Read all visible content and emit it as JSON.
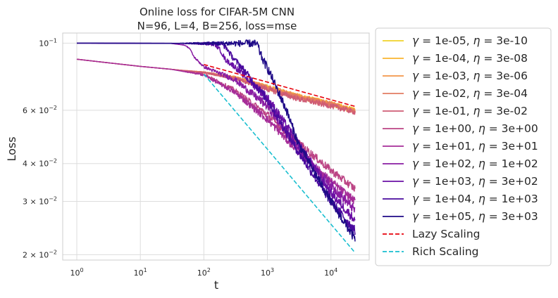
{
  "chart_data": {
    "type": "line",
    "title": "Online loss for CIFAR-5M CNN",
    "subtitle": "N=96, L=4, B=256, loss=mse",
    "xlabel": "t",
    "ylabel": "Loss",
    "xscale": "log",
    "yscale": "log",
    "xlim": [
      0.6,
      40000
    ],
    "ylim": [
      0.0192,
      0.108
    ],
    "x_ticks": [
      {
        "value": 1,
        "base": "10",
        "exp": "0"
      },
      {
        "value": 10,
        "base": "10",
        "exp": "1"
      },
      {
        "value": 100,
        "base": "10",
        "exp": "2"
      },
      {
        "value": 1000,
        "base": "10",
        "exp": "3"
      },
      {
        "value": 10000,
        "base": "10",
        "exp": "4"
      }
    ],
    "y_ticks": [
      {
        "value": 0.1,
        "base": "10",
        "exp": "−1",
        "mant": ""
      },
      {
        "value": 0.06,
        "base": "10",
        "exp": "−2",
        "mant": "6 × "
      },
      {
        "value": 0.04,
        "base": "10",
        "exp": "−2",
        "mant": "4 × "
      },
      {
        "value": 0.03,
        "base": "10",
        "exp": "−2",
        "mant": "3 × "
      },
      {
        "value": 0.02,
        "base": "10",
        "exp": "−2",
        "mant": "2 × "
      }
    ],
    "grid": true,
    "legend_position": "outside-right",
    "series": [
      {
        "name": "γ = 1e-05, η = 3e-10",
        "gamma": "1e-05",
        "eta": "3e-10",
        "color": "#f0d22a",
        "style": "solid",
        "points": [
          [
            1,
            0.0885
          ],
          [
            3,
            0.0862
          ],
          [
            10,
            0.0838
          ],
          [
            30,
            0.082
          ],
          [
            100,
            0.08
          ],
          [
            300,
            0.077
          ],
          [
            1000,
            0.0715
          ],
          [
            3000,
            0.0668
          ],
          [
            10000,
            0.063
          ],
          [
            24000,
            0.06
          ]
        ],
        "noise": 0.02
      },
      {
        "name": "γ = 1e-04, η = 3e-08",
        "gamma": "1e-04",
        "eta": "3e-08",
        "color": "#f9b42f",
        "style": "solid",
        "points": [
          [
            1,
            0.0885
          ],
          [
            3,
            0.0862
          ],
          [
            10,
            0.0838
          ],
          [
            30,
            0.082
          ],
          [
            100,
            0.08
          ],
          [
            300,
            0.077
          ],
          [
            1000,
            0.0715
          ],
          [
            3000,
            0.0668
          ],
          [
            10000,
            0.063
          ],
          [
            24000,
            0.0598
          ]
        ],
        "noise": 0.02
      },
      {
        "name": "γ = 1e-03, η = 3e-06",
        "gamma": "1e-03",
        "eta": "3e-06",
        "color": "#f3964a",
        "style": "solid",
        "points": [
          [
            1,
            0.0885
          ],
          [
            3,
            0.0862
          ],
          [
            10,
            0.0838
          ],
          [
            30,
            0.082
          ],
          [
            100,
            0.08
          ],
          [
            300,
            0.077
          ],
          [
            1000,
            0.0715
          ],
          [
            3000,
            0.0668
          ],
          [
            10000,
            0.063
          ],
          [
            24000,
            0.0596
          ]
        ],
        "noise": 0.02
      },
      {
        "name": "γ = 1e-02, η = 3e-04",
        "gamma": "1e-02",
        "eta": "3e-04",
        "color": "#e27b62",
        "style": "solid",
        "points": [
          [
            1,
            0.0885
          ],
          [
            3,
            0.0862
          ],
          [
            10,
            0.0838
          ],
          [
            30,
            0.082
          ],
          [
            100,
            0.08
          ],
          [
            300,
            0.077
          ],
          [
            1000,
            0.0712
          ],
          [
            3000,
            0.0665
          ],
          [
            10000,
            0.0627
          ],
          [
            24000,
            0.0594
          ]
        ],
        "noise": 0.02
      },
      {
        "name": "γ = 1e-01, η = 3e-02",
        "gamma": "1e-01",
        "eta": "3e-02",
        "color": "#cf5c75",
        "style": "solid",
        "points": [
          [
            1,
            0.0885
          ],
          [
            3,
            0.0862
          ],
          [
            10,
            0.0838
          ],
          [
            30,
            0.082
          ],
          [
            100,
            0.08
          ],
          [
            300,
            0.0765
          ],
          [
            1000,
            0.0705
          ],
          [
            3000,
            0.0655
          ],
          [
            10000,
            0.062
          ],
          [
            24000,
            0.0592
          ]
        ],
        "noise": 0.02
      },
      {
        "name": "γ = 1e+00, η = 3e+00",
        "gamma": "1e+00",
        "eta": "3e+00",
        "color": "#bc4485",
        "style": "solid",
        "points": [
          [
            1,
            0.0885
          ],
          [
            3,
            0.0862
          ],
          [
            10,
            0.0838
          ],
          [
            30,
            0.082
          ],
          [
            100,
            0.079
          ],
          [
            300,
            0.07
          ],
          [
            1000,
            0.058
          ],
          [
            3000,
            0.047
          ],
          [
            10000,
            0.038
          ],
          [
            24000,
            0.033
          ]
        ],
        "noise": 0.03
      },
      {
        "name": "γ = 1e+01, η = 3e+01",
        "gamma": "1e+01",
        "eta": "3e+01",
        "color": "#a62d98",
        "style": "solid",
        "points": [
          [
            1,
            0.0885
          ],
          [
            3,
            0.0862
          ],
          [
            10,
            0.0838
          ],
          [
            30,
            0.082
          ],
          [
            100,
            0.0785
          ],
          [
            300,
            0.069
          ],
          [
            1000,
            0.056
          ],
          [
            3000,
            0.044
          ],
          [
            10000,
            0.035
          ],
          [
            24000,
            0.03
          ]
        ],
        "noise": 0.03
      },
      {
        "name": "γ = 1e+02, η = 1e+02",
        "gamma": "1e+02",
        "eta": "1e+02",
        "color": "#8a1da3",
        "style": "solid",
        "points": [
          [
            1,
            0.1
          ],
          [
            30,
            0.0998
          ],
          [
            50,
            0.0985
          ],
          [
            60,
            0.096
          ],
          [
            70,
            0.09
          ],
          [
            100,
            0.0835
          ],
          [
            300,
            0.076
          ],
          [
            1000,
            0.062
          ],
          [
            3000,
            0.045
          ],
          [
            10000,
            0.034
          ],
          [
            24000,
            0.028
          ]
        ],
        "noise": 0.035
      },
      {
        "name": "γ = 1e+03, η = 3e+02",
        "gamma": "1e+03",
        "eta": "3e+02",
        "color": "#6a10a5",
        "style": "solid",
        "points": [
          [
            1,
            0.1
          ],
          [
            100,
            0.0998
          ],
          [
            150,
            0.099
          ],
          [
            180,
            0.095
          ],
          [
            220,
            0.088
          ],
          [
            300,
            0.084
          ],
          [
            1000,
            0.066
          ],
          [
            3000,
            0.047
          ],
          [
            10000,
            0.032
          ],
          [
            24000,
            0.026
          ]
        ],
        "noise": 0.035
      },
      {
        "name": "γ = 1e+04, η = 1e+03",
        "gamma": "1e+04",
        "eta": "1e+03",
        "color": "#4a0a9e",
        "style": "solid",
        "points": [
          [
            1,
            0.1
          ],
          [
            150,
            0.0998
          ],
          [
            190,
            0.0995
          ],
          [
            230,
            0.096
          ],
          [
            280,
            0.09
          ],
          [
            400,
            0.083
          ],
          [
            1000,
            0.065
          ],
          [
            3000,
            0.044
          ],
          [
            10000,
            0.03
          ],
          [
            24000,
            0.024
          ]
        ],
        "noise": 0.035
      },
      {
        "name": "γ = 1e+05, η = 3e+03",
        "gamma": "1e+05",
        "eta": "3e+03",
        "color": "#1f0a87",
        "style": "solid",
        "points": [
          [
            1,
            0.1
          ],
          [
            600,
            0.0998
          ],
          [
            700,
            0.099
          ],
          [
            750,
            0.094
          ],
          [
            850,
            0.088
          ],
          [
            1000,
            0.083
          ],
          [
            2000,
            0.06
          ],
          [
            3000,
            0.047
          ],
          [
            10000,
            0.03
          ],
          [
            24000,
            0.0225
          ]
        ],
        "noise": 0.035
      },
      {
        "name": "Lazy Scaling",
        "color": "#e8000b",
        "style": "dashed",
        "points": [
          [
            100,
            0.085
          ],
          [
            24000,
            0.0618
          ]
        ],
        "noise": 0
      },
      {
        "name": "Rich Scaling",
        "color": "#17becf",
        "style": "dashed",
        "points": [
          [
            100,
            0.079
          ],
          [
            24000,
            0.0203
          ]
        ],
        "noise": 0
      }
    ]
  }
}
